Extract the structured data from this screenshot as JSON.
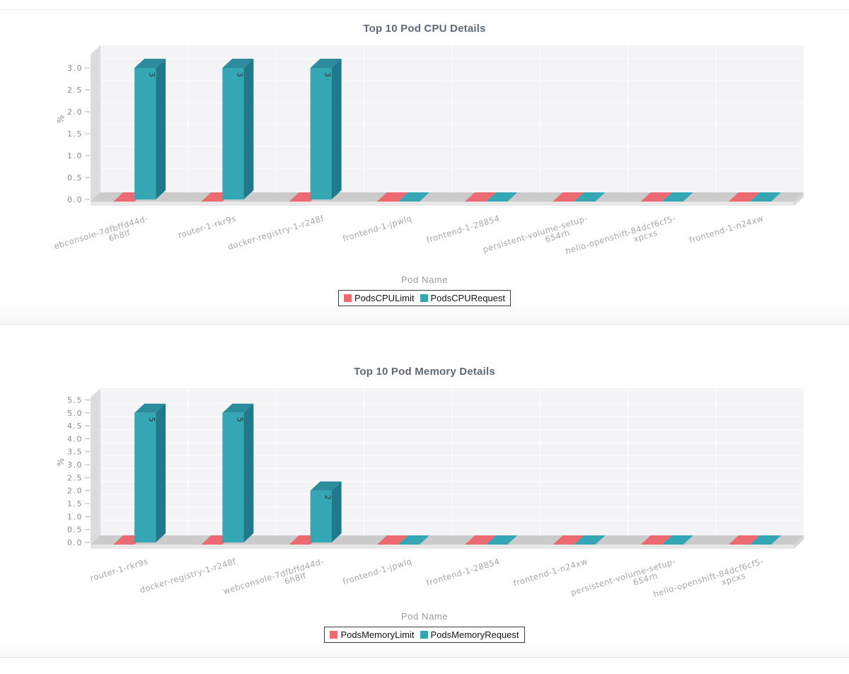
{
  "colors": {
    "bar_red": "#ee6a72",
    "bar_teal_front": "#35a7b4",
    "bar_teal_top": "#2b8c9c",
    "bar_teal_side": "#20798a",
    "wall": "#f4f3f5",
    "wall_bevel": "#dcdbdd",
    "floor_top": "#cbcbcb",
    "floor_front": "#e7e7e7",
    "floor_bevel": "#d6d6d6",
    "grid": "#ffffff",
    "tick_mark": "#b0b0b0",
    "tick_text": "#8b8b8b",
    "category_text": "#a6a6a6",
    "title_text": "#5b6a78",
    "axis_title_text": "#9b9b9b",
    "value_text": "#2e2e2e"
  },
  "chart_data": [
    {
      "type": "bar",
      "title": "Top 10 Pod CPU Details",
      "xlabel": "Pod Name",
      "ylabel": "%",
      "ylim": [
        0,
        3.5
      ],
      "ymax_tick": 3.0,
      "ytick_step": 0.5,
      "grid": true,
      "legend_position": "bottom",
      "categories": [
        [
          "ebconsole-7dfbffd44d-",
          "6h8lf"
        ],
        [
          "router-1-rkr9s"
        ],
        [
          "docker-registry-1-r248f"
        ],
        [
          "frontend-1-jpwlq"
        ],
        [
          "frontend-1-28854"
        ],
        [
          "persistent-volume-setup-",
          "654rh"
        ],
        [
          "hello-openshift-84dcf6cf5-",
          "xpcxs"
        ],
        [
          "frontend-1-n24xw"
        ]
      ],
      "series": [
        {
          "name": "PodsCPULimit",
          "color": "#ee6a72",
          "values": [
            0,
            0,
            0,
            0,
            0,
            0,
            0,
            0
          ]
        },
        {
          "name": "PodsCPURequest",
          "color": "#35a7b4",
          "values": [
            3,
            3,
            3,
            0,
            0,
            0,
            0,
            0
          ]
        }
      ]
    },
    {
      "type": "bar",
      "title": "Top 10 Pod Memory Details",
      "xlabel": "Pod Name",
      "ylabel": "%",
      "ylim": [
        0,
        6.0
      ],
      "ymax_tick": 5.5,
      "ytick_step": 0.5,
      "grid": true,
      "legend_position": "bottom",
      "categories": [
        [
          "router-1-rkr9s"
        ],
        [
          "docker-registry-1-r248f"
        ],
        [
          "webconsole-7dfbffd44d-",
          "6h8lf"
        ],
        [
          "frontend-1-jpwlq"
        ],
        [
          "frontend-1-28854"
        ],
        [
          "frontend-1-n24xw"
        ],
        [
          "persistent-volume-setup-",
          "654rh"
        ],
        [
          "hello-openshift-84dcf6cf5-",
          "xpcxs"
        ]
      ],
      "series": [
        {
          "name": "PodsMemoryLimit",
          "color": "#ee6a72",
          "values": [
            0,
            0,
            0,
            0,
            0,
            0,
            0,
            0
          ]
        },
        {
          "name": "PodsMemoryRequest",
          "color": "#35a7b4",
          "values": [
            5,
            5,
            2,
            0,
            0,
            0,
            0,
            0
          ]
        }
      ]
    }
  ]
}
